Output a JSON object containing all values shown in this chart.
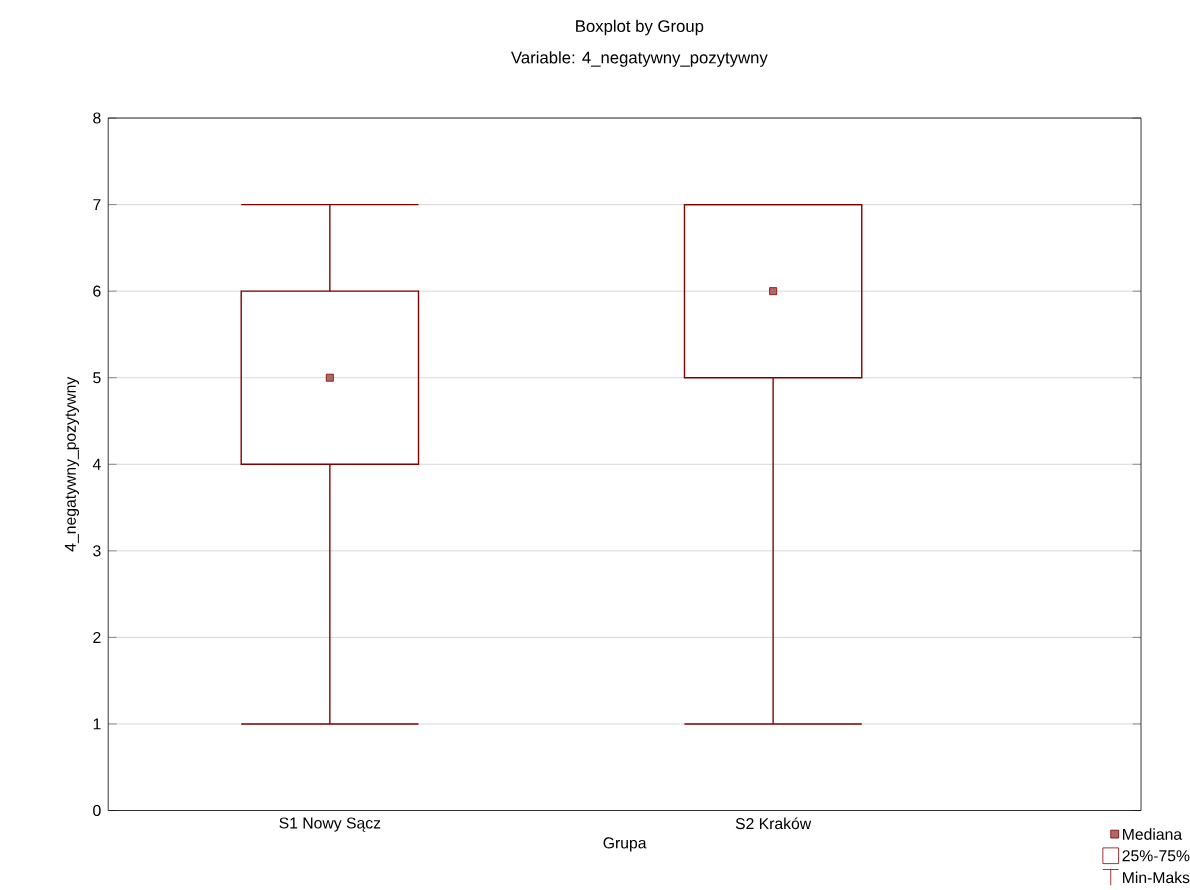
{
  "chart_data": {
    "type": "box",
    "title": "Boxplot by Group",
    "subtitle": "Variable: 4_negatywny_pozytywny",
    "xlabel": "Grupa",
    "ylabel": "4_negatywny_pozytywny",
    "categories": [
      "S1 Nowy Sącz",
      "S2 Kraków"
    ],
    "series": [
      {
        "color": "#800000",
        "boxes": [
          {
            "low": 1,
            "q1": 4,
            "median": 5,
            "q3": 6,
            "high": 7
          },
          {
            "low": 1,
            "q1": 5,
            "median": 6,
            "q3": 7,
            "high": 7
          }
        ]
      }
    ],
    "ylim": [
      0,
      8
    ],
    "yticks": [
      0,
      1,
      2,
      3,
      4,
      5,
      6,
      7,
      8
    ],
    "grid": "y",
    "marker": "square",
    "annotations": [
      "Mediana",
      "25%-75%",
      "Min-Maks"
    ]
  }
}
